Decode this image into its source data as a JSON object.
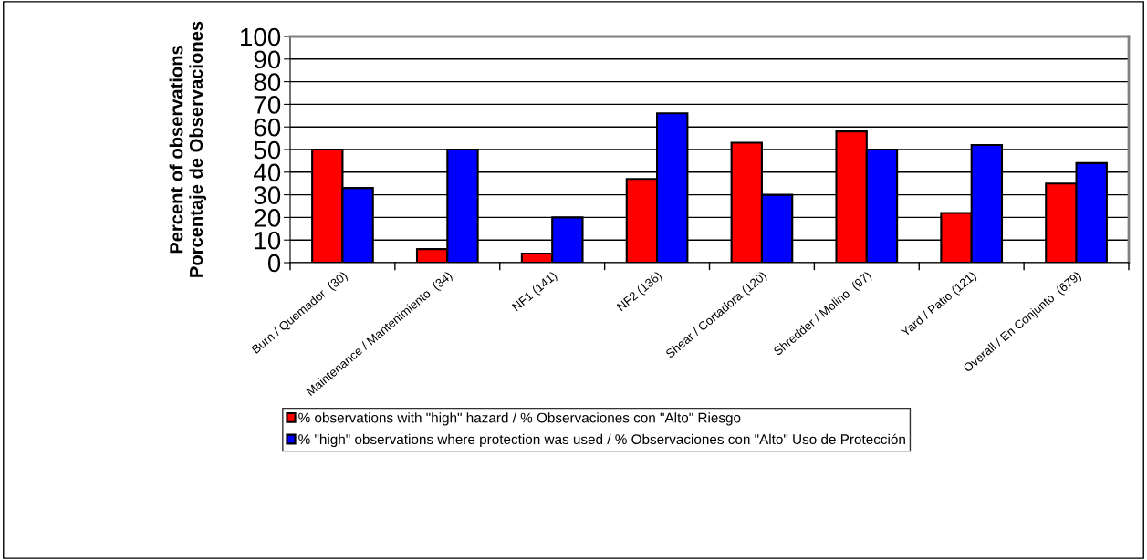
{
  "chart_data": {
    "type": "bar",
    "ylabel": "Percent of observations\nPorcentaje de Observaciones",
    "categories": [
      "Burn / Quemador  (30)",
      "Maintenance / Mantenimiento  (34)",
      "NF1 (141)",
      "NF2 (136)",
      "Shear / Cortadora (120)",
      "Shredder / Molino  (97)",
      "Yard / Patio (121)",
      "Overall / En Conjunto  (679)"
    ],
    "series": [
      {
        "name": "% observations with \"high\" hazard / % Observaciones con \"Alto\" Riesgo",
        "color": "#ff0000",
        "values": [
          50,
          6,
          4,
          37,
          53,
          58,
          22,
          35
        ]
      },
      {
        "name": "% \"high\" observations where protection was used / % Observaciones con \"Alto\" Uso de Protección",
        "color": "#0000ff",
        "values": [
          33,
          50,
          20,
          66,
          30,
          50,
          52,
          44
        ]
      }
    ],
    "ylim": [
      0,
      100
    ],
    "yticks": [
      0,
      10,
      20,
      30,
      40,
      50,
      60,
      70,
      80,
      90,
      100
    ],
    "grid": "y",
    "legend": "bottom"
  }
}
